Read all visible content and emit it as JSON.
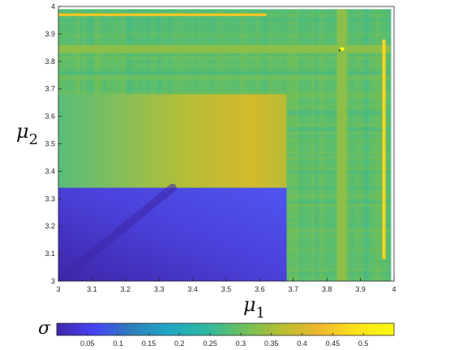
{
  "chart_data": {
    "type": "heatmap",
    "title": "",
    "xlabel": {
      "base": "μ",
      "sub": "1"
    },
    "ylabel": {
      "base": "μ",
      "sub": "2"
    },
    "xlim": [
      3,
      4
    ],
    "ylim": [
      3,
      4
    ],
    "xticks": [
      "3",
      "3.1",
      "3.2",
      "3.3",
      "3.4",
      "3.5",
      "3.6",
      "3.7",
      "3.8",
      "3.9",
      "4"
    ],
    "yticks": [
      "3",
      "3.1",
      "3.2",
      "3.3",
      "3.4",
      "3.5",
      "3.6",
      "3.7",
      "3.8",
      "3.9",
      "4"
    ],
    "grid": false,
    "colorbar": {
      "label": "σ",
      "orientation": "horizontal",
      "range": [
        0,
        0.55
      ],
      "ticks": [
        "0.05",
        "0.1",
        "0.15",
        "0.2",
        "0.25",
        "0.3",
        "0.35",
        "0.4",
        "0.45",
        "0.5"
      ],
      "colormap": [
        "#3e26a8",
        "#4743f8",
        "#2c7fb8",
        "#1fa8c4",
        "#2fb7a0",
        "#6dc05a",
        "#b7bd33",
        "#f0b82e",
        "#fbe21b",
        "#f9fb0e"
      ]
    },
    "regions": [
      {
        "name": "chaotic background",
        "mu1": [
          3.0,
          3.99
        ],
        "mu2": [
          3.0,
          3.99
        ],
        "sigma": 0.29
      },
      {
        "name": "upper-left block",
        "mu1": [
          3.0,
          3.68
        ],
        "mu2": [
          3.34,
          3.68
        ],
        "sigma": [
          0.27,
          0.4
        ]
      },
      {
        "name": "lower-left block",
        "mu1": [
          3.0,
          3.68
        ],
        "mu2": [
          3.0,
          3.34
        ],
        "sigma": [
          0.0,
          0.1
        ]
      },
      {
        "name": "band mu2=3.83-3.86",
        "mu2": [
          3.83,
          3.86
        ],
        "sigma": 0.33
      },
      {
        "name": "band mu1=3.83-3.86",
        "mu1": [
          3.83,
          3.86
        ],
        "sigma": 0.33
      },
      {
        "name": "line mu2=3.97",
        "mu2": [
          3.965,
          3.975
        ],
        "sigma": 0.45
      },
      {
        "name": "line mu1=3.97",
        "mu1": [
          3.965,
          3.975
        ],
        "sigma": 0.47
      },
      {
        "name": "spot (3.845, 3.845)",
        "mu1": 3.845,
        "mu2": 3.845,
        "sigma": 0.55
      }
    ]
  }
}
